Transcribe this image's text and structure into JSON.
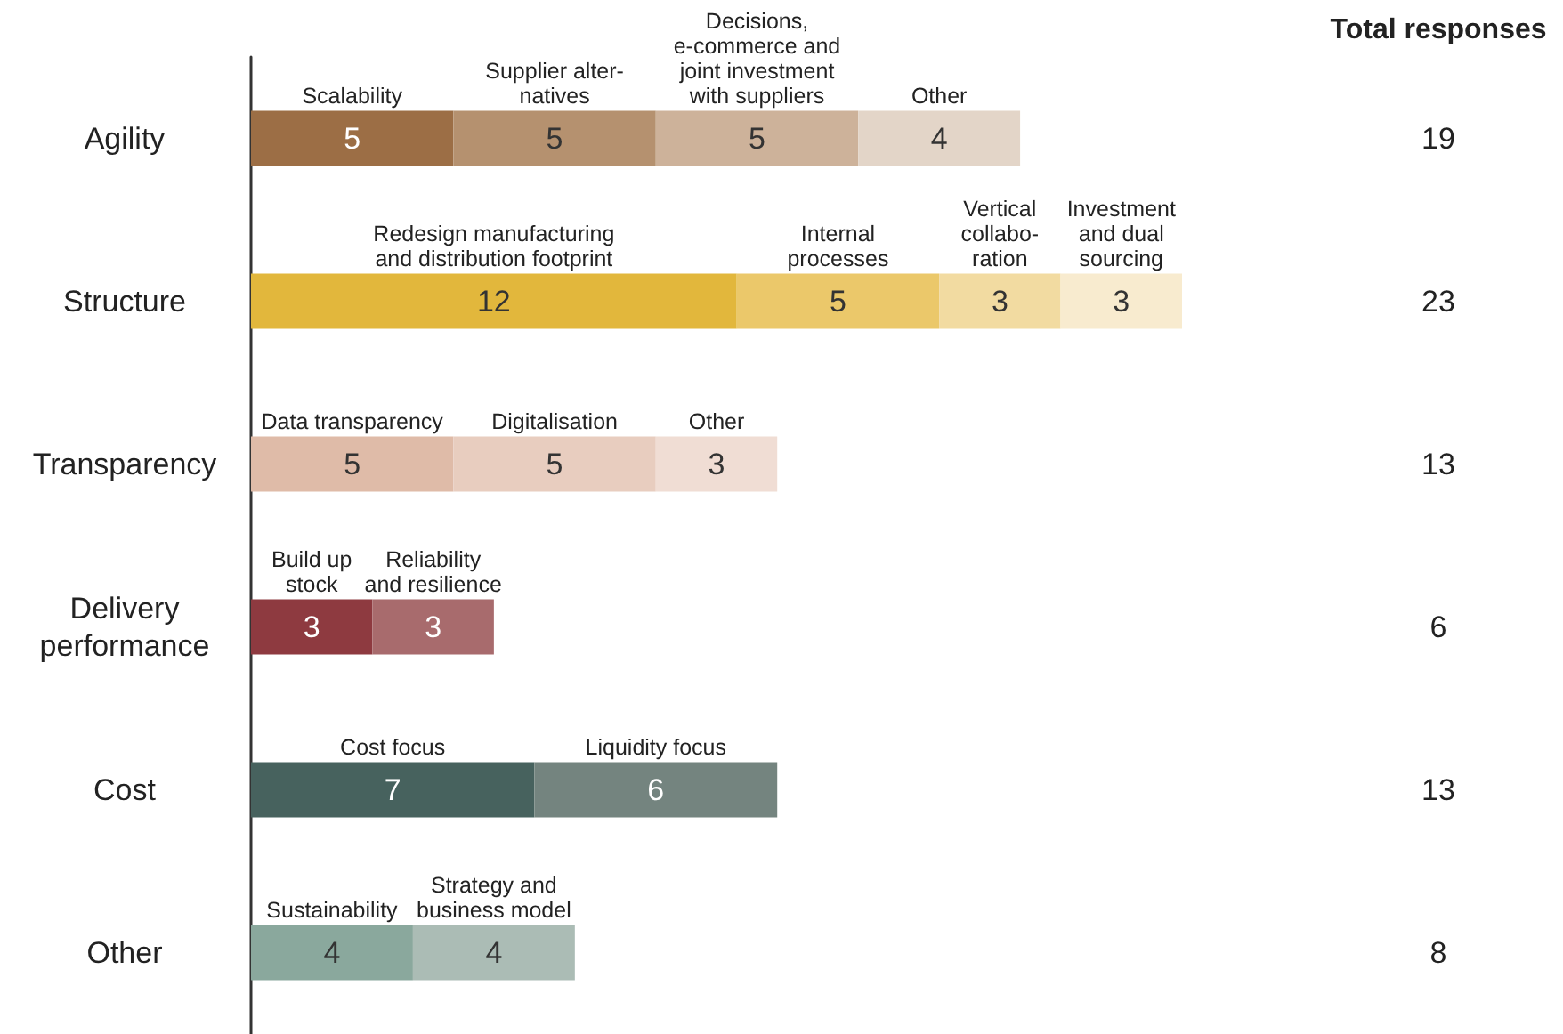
{
  "chart_data": {
    "type": "bar",
    "orientation": "horizontal",
    "stacked": true,
    "data_labels": true,
    "categories": [
      "Agility",
      "Structure",
      "Transparency",
      "Delivery\nperformance",
      "Cost",
      "Other"
    ],
    "series": [
      {
        "colors": [
          "#9c6e45",
          "#e2b73c",
          "#dfbba8",
          "#8e3a40",
          "#47625e",
          "#8aa89d"
        ],
        "values": [
          5,
          12,
          5,
          3,
          7,
          4
        ]
      },
      {
        "colors": [
          "#b5916f",
          "#ebc86a",
          "#e8cdbf",
          "#a86b6d",
          "#74847f",
          "#abbcb5"
        ],
        "values": [
          5,
          5,
          5,
          3,
          6,
          4
        ]
      },
      {
        "colors": [
          "#cdb29a",
          "#f2dba1",
          "#f0ddd4",
          null,
          null,
          null
        ],
        "values": [
          5,
          3,
          3,
          null,
          null,
          null
        ]
      },
      {
        "colors": [
          "#e3d5c8",
          "#f8ebcf",
          null,
          null,
          null,
          null
        ],
        "values": [
          4,
          3,
          null,
          null,
          null,
          null
        ]
      }
    ],
    "annotations": [
      "Total responses",
      "Scalability",
      "Supplier alter-\nnatives",
      "Decisions,\ne-commerce and\njoint investment\nwith suppliers",
      "Other",
      "Redesign manufacturing\nand distribution footprint",
      "Internal\nprocesses",
      "Vertical\ncollabo-\nration",
      "Investment\nand dual\nsourcing",
      "Data transparency",
      "Digitalisation",
      "Other",
      "Build up\nstock",
      "Reliability\nand resilience",
      "Cost focus",
      "Liquidity focus",
      "Sustainability",
      "Strategy and\nbusiness model",
      "19",
      "23",
      "13",
      "6",
      "13",
      "8"
    ]
  }
}
